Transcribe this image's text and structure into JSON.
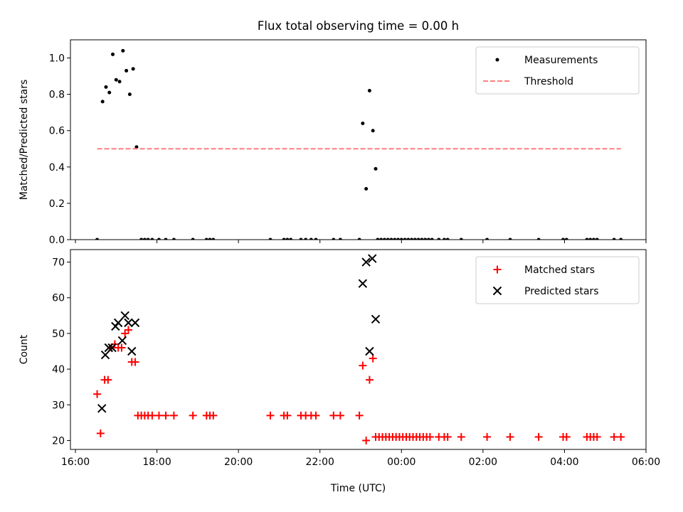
{
  "title": "Flux total observing time = 0.00 h",
  "chart_data": [
    {
      "type": "scatter",
      "title": "Flux total observing time = 0.00 h",
      "xlabel": "",
      "ylabel": "Matched/Predicted stars",
      "ylim": [
        0,
        1.1
      ],
      "yticks": [
        "0.0",
        "0.2",
        "0.4",
        "0.6",
        "0.8",
        "1.0"
      ],
      "grid": false,
      "legend_position": "top-right",
      "series": [
        {
          "name": "Measurements",
          "marker": "dot",
          "color": "#000000",
          "points": [
            [
              "16:32",
              0.0
            ],
            [
              "16:40",
              0.76
            ],
            [
              "16:45",
              0.84
            ],
            [
              "16:50",
              0.81
            ],
            [
              "16:55",
              1.02
            ],
            [
              "17:00",
              0.88
            ],
            [
              "17:05",
              0.87
            ],
            [
              "17:10",
              1.04
            ],
            [
              "17:15",
              0.93
            ],
            [
              "17:20",
              0.8
            ],
            [
              "17:25",
              0.94
            ],
            [
              "17:30",
              0.51
            ],
            [
              "17:37",
              0.0
            ],
            [
              "17:42",
              0.0
            ],
            [
              "17:47",
              0.0
            ],
            [
              "17:53",
              0.0
            ],
            [
              "18:03",
              0.0
            ],
            [
              "18:13",
              0.0
            ],
            [
              "18:25",
              0.0
            ],
            [
              "18:53",
              0.0
            ],
            [
              "19:13",
              0.0
            ],
            [
              "19:18",
              0.0
            ],
            [
              "19:23",
              0.0
            ],
            [
              "20:47",
              0.0
            ],
            [
              "21:07",
              0.0
            ],
            [
              "21:12",
              0.0
            ],
            [
              "21:17",
              0.0
            ],
            [
              "21:32",
              0.0
            ],
            [
              "21:39",
              0.0
            ],
            [
              "21:47",
              0.0
            ],
            [
              "21:54",
              0.0
            ],
            [
              "22:20",
              0.0
            ],
            [
              "22:30",
              0.0
            ],
            [
              "22:58",
              0.0
            ],
            [
              "23:03",
              0.64
            ],
            [
              "23:08",
              0.28
            ],
            [
              "23:13",
              0.82
            ],
            [
              "23:18",
              0.6
            ],
            [
              "23:22",
              0.39
            ],
            [
              "23:25",
              0.0
            ],
            [
              "23:30",
              0.0
            ],
            [
              "23:35",
              0.0
            ],
            [
              "23:40",
              0.0
            ],
            [
              "23:45",
              0.0
            ],
            [
              "23:50",
              0.0
            ],
            [
              "23:55",
              0.0
            ],
            [
              "00:00",
              0.0
            ],
            [
              "00:05",
              0.0
            ],
            [
              "00:10",
              0.0
            ],
            [
              "00:15",
              0.0
            ],
            [
              "00:20",
              0.0
            ],
            [
              "00:25",
              0.0
            ],
            [
              "00:30",
              0.0
            ],
            [
              "00:35",
              0.0
            ],
            [
              "00:40",
              0.0
            ],
            [
              "00:45",
              0.0
            ],
            [
              "00:55",
              0.0
            ],
            [
              "01:03",
              0.0
            ],
            [
              "01:08",
              0.0
            ],
            [
              "01:28",
              0.0
            ],
            [
              "02:06",
              0.0
            ],
            [
              "02:40",
              0.0
            ],
            [
              "03:22",
              0.0
            ],
            [
              "03:58",
              0.0
            ],
            [
              "04:03",
              0.0
            ],
            [
              "04:33",
              0.0
            ],
            [
              "04:38",
              0.0
            ],
            [
              "04:43",
              0.0
            ],
            [
              "04:48",
              0.0
            ],
            [
              "05:13",
              0.0
            ],
            [
              "05:23",
              0.0
            ]
          ]
        },
        {
          "name": "Threshold",
          "marker": "dashed-line",
          "color": "#ff7f7f",
          "points": [
            [
              "16:32",
              0.5
            ],
            [
              "05:23",
              0.5
            ]
          ]
        }
      ]
    },
    {
      "type": "scatter",
      "title": "",
      "xlabel": "Time (UTC)",
      "ylabel": "Count",
      "ylim": [
        17.5,
        73.5
      ],
      "yticks": [
        "20",
        "30",
        "40",
        "50",
        "60",
        "70"
      ],
      "grid": false,
      "legend_position": "top-right",
      "series": [
        {
          "name": "Matched stars",
          "marker": "plus",
          "color": "#ff0000",
          "points": [
            [
              "16:32",
              33
            ],
            [
              "16:37",
              22
            ],
            [
              "16:43",
              37
            ],
            [
              "16:48",
              37
            ],
            [
              "16:53",
              46
            ],
            [
              "16:58",
              47
            ],
            [
              "17:03",
              46
            ],
            [
              "17:08",
              46
            ],
            [
              "17:13",
              50
            ],
            [
              "17:18",
              51
            ],
            [
              "17:23",
              42
            ],
            [
              "17:28",
              42
            ],
            [
              "17:32",
              27
            ],
            [
              "17:37",
              27
            ],
            [
              "17:42",
              27
            ],
            [
              "17:47",
              27
            ],
            [
              "17:53",
              27
            ],
            [
              "18:03",
              27
            ],
            [
              "18:13",
              27
            ],
            [
              "18:25",
              27
            ],
            [
              "18:53",
              27
            ],
            [
              "19:13",
              27
            ],
            [
              "19:18",
              27
            ],
            [
              "19:23",
              27
            ],
            [
              "20:47",
              27
            ],
            [
              "21:07",
              27
            ],
            [
              "21:12",
              27
            ],
            [
              "21:32",
              27
            ],
            [
              "21:39",
              27
            ],
            [
              "21:47",
              27
            ],
            [
              "21:54",
              27
            ],
            [
              "22:20",
              27
            ],
            [
              "22:30",
              27
            ],
            [
              "22:58",
              27
            ],
            [
              "23:03",
              41
            ],
            [
              "23:08",
              20
            ],
            [
              "23:13",
              37
            ],
            [
              "23:18",
              43
            ],
            [
              "23:22",
              21
            ],
            [
              "23:27",
              21
            ],
            [
              "23:32",
              21
            ],
            [
              "23:37",
              21
            ],
            [
              "23:42",
              21
            ],
            [
              "23:47",
              21
            ],
            [
              "23:52",
              21
            ],
            [
              "23:57",
              21
            ],
            [
              "00:02",
              21
            ],
            [
              "00:07",
              21
            ],
            [
              "00:12",
              21
            ],
            [
              "00:17",
              21
            ],
            [
              "00:22",
              21
            ],
            [
              "00:27",
              21
            ],
            [
              "00:32",
              21
            ],
            [
              "00:37",
              21
            ],
            [
              "00:42",
              21
            ],
            [
              "00:55",
              21
            ],
            [
              "01:03",
              21
            ],
            [
              "01:08",
              21
            ],
            [
              "01:28",
              21
            ],
            [
              "02:06",
              21
            ],
            [
              "02:40",
              21
            ],
            [
              "03:22",
              21
            ],
            [
              "03:58",
              21
            ],
            [
              "04:03",
              21
            ],
            [
              "04:33",
              21
            ],
            [
              "04:38",
              21
            ],
            [
              "04:43",
              21
            ],
            [
              "04:48",
              21
            ],
            [
              "05:13",
              21
            ],
            [
              "05:23",
              21
            ]
          ]
        },
        {
          "name": "Predicted stars",
          "marker": "x",
          "color": "#000000",
          "points": [
            [
              "16:39",
              29
            ],
            [
              "16:44",
              44
            ],
            [
              "16:49",
              46
            ],
            [
              "16:54",
              46
            ],
            [
              "16:59",
              52
            ],
            [
              "17:03",
              53
            ],
            [
              "17:09",
              48
            ],
            [
              "17:13",
              55
            ],
            [
              "17:18",
              53
            ],
            [
              "17:23",
              45
            ],
            [
              "17:28",
              53
            ],
            [
              "23:03",
              64
            ],
            [
              "23:08",
              70
            ],
            [
              "23:13",
              45
            ],
            [
              "23:17",
              71
            ],
            [
              "23:22",
              54
            ]
          ]
        }
      ]
    }
  ],
  "x_axis": {
    "range": [
      "16:00",
      "06:00"
    ],
    "ticks": [
      "16:00",
      "18:00",
      "20:00",
      "22:00",
      "00:00",
      "02:00",
      "04:00",
      "06:00"
    ]
  }
}
